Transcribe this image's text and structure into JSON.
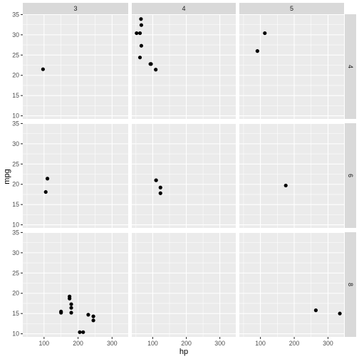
{
  "chart_data": {
    "type": "scatter",
    "title": "",
    "xlabel": "hp",
    "ylabel": "mpg",
    "xlim": [
      37.55,
      347.45
    ],
    "ylim": [
      9.225,
      35.075
    ],
    "x_ticks": [
      100,
      200,
      300
    ],
    "y_ticks": [
      10,
      15,
      20,
      25,
      30,
      35
    ],
    "grid": true,
    "facets": {
      "cols": [
        "3",
        "4",
        "5"
      ],
      "rows": [
        "4",
        "6",
        "8"
      ]
    },
    "panels": [
      {
        "col": "3",
        "row": "4",
        "points": [
          [
            97,
            21.5
          ]
        ]
      },
      {
        "col": "4",
        "row": "4",
        "points": [
          [
            62,
            30.4
          ],
          [
            66,
            32.4
          ],
          [
            66,
            27.3
          ],
          [
            65,
            33.9
          ],
          [
            52,
            30.4
          ],
          [
            62,
            24.4
          ],
          [
            95,
            22.8
          ],
          [
            93,
            22.8
          ],
          [
            109,
            21.4
          ]
        ]
      },
      {
        "col": "5",
        "row": "4",
        "points": [
          [
            91,
            26.0
          ],
          [
            113,
            30.4
          ]
        ]
      },
      {
        "col": "3",
        "row": "6",
        "points": [
          [
            110,
            21.4
          ],
          [
            105,
            18.1
          ]
        ]
      },
      {
        "col": "4",
        "row": "6",
        "points": [
          [
            110,
            21.0
          ],
          [
            110,
            21.0
          ],
          [
            123,
            19.2
          ],
          [
            123,
            17.8
          ]
        ]
      },
      {
        "col": "5",
        "row": "6",
        "points": [
          [
            175,
            19.7
          ]
        ]
      },
      {
        "col": "3",
        "row": "8",
        "points": [
          [
            175,
            18.7
          ],
          [
            245,
            14.3
          ],
          [
            180,
            16.4
          ],
          [
            180,
            17.3
          ],
          [
            180,
            15.2
          ],
          [
            205,
            10.4
          ],
          [
            215,
            10.4
          ],
          [
            230,
            14.7
          ],
          [
            150,
            15.5
          ],
          [
            150,
            15.2
          ],
          [
            245,
            13.3
          ],
          [
            175,
            19.2
          ]
        ]
      },
      {
        "col": "4",
        "row": "8",
        "points": []
      },
      {
        "col": "5",
        "row": "8",
        "points": [
          [
            264,
            15.8
          ],
          [
            335,
            15.0
          ]
        ]
      }
    ]
  }
}
